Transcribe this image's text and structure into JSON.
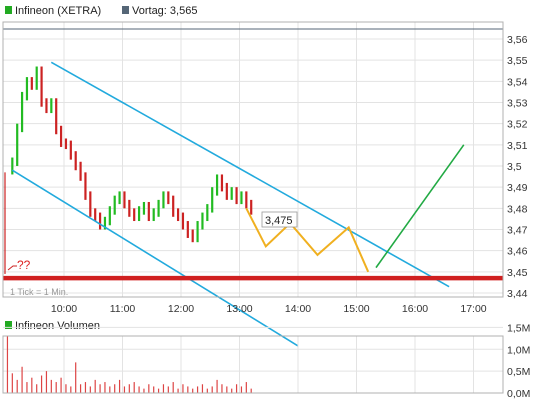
{
  "header": {
    "instrument_label": "Infineon (XETRA)",
    "instrument_color": "#22aa22",
    "prev_close_label": "Vortag: 3,565",
    "prev_close_color": "#556677"
  },
  "volume_header": {
    "label": "Infineon Volumen",
    "color": "#22aa22"
  },
  "annotation": {
    "question_text": "??",
    "tick_text": "1 Tick = 1 Min.",
    "target_label": "3,475"
  },
  "colors": {
    "up": "#22bb22",
    "down": "#cc2222",
    "channel": "#22aadd",
    "projection_yellow": "#f0b020",
    "projection_green": "#22aa44",
    "support": "#d02020",
    "grid": "#e3e3e3",
    "volume": "#dd4444"
  },
  "chart_data": [
    {
      "type": "line",
      "title": "Infineon (XETRA)",
      "x_ticks": [
        "10:00",
        "11:00",
        "12:00",
        "13:00",
        "14:00",
        "15:00",
        "16:00",
        "17:00"
      ],
      "x_range": [
        "09:00",
        "17:30"
      ],
      "y_ticks": [
        "3,56",
        "3,55",
        "3,54",
        "3,53",
        "3,52",
        "3,51",
        "3,5",
        "3,49",
        "3,48",
        "3,47",
        "3,46",
        "3,45",
        "3,44"
      ],
      "y_range": [
        3.44,
        3.56
      ],
      "grid": true,
      "previous_close": 3.565,
      "series": [
        {
          "name": "Infineon (XETRA)",
          "kind": "minute-bars",
          "x": [
            "09:07",
            "09:12",
            "09:17",
            "09:22",
            "09:27",
            "09:32",
            "09:37",
            "09:42",
            "09:47",
            "09:52",
            "09:57",
            "10:02",
            "10:07",
            "10:12",
            "10:17",
            "10:22",
            "10:27",
            "10:32",
            "10:37",
            "10:42",
            "10:47",
            "10:52",
            "10:57",
            "11:02",
            "11:07",
            "11:12",
            "11:17",
            "11:22",
            "11:27",
            "11:32",
            "11:37",
            "11:42",
            "11:47",
            "11:52",
            "11:57",
            "12:02",
            "12:07",
            "12:12",
            "12:17",
            "12:22",
            "12:27",
            "12:32",
            "12:37",
            "12:42",
            "12:47",
            "12:52",
            "12:57",
            "13:02",
            "13:07",
            "13:12"
          ],
          "y": [
            3.502,
            3.518,
            3.533,
            3.54,
            3.538,
            3.545,
            3.53,
            3.527,
            3.53,
            3.517,
            3.511,
            3.51,
            3.505,
            3.5,
            3.495,
            3.486,
            3.478,
            3.476,
            3.472,
            3.474,
            3.479,
            3.484,
            3.486,
            3.482,
            3.478,
            3.476,
            3.479,
            3.481,
            3.476,
            3.478,
            3.482,
            3.486,
            3.484,
            3.478,
            3.476,
            3.472,
            3.468,
            3.466,
            3.472,
            3.476,
            3.48,
            3.488,
            3.494,
            3.49,
            3.486,
            3.488,
            3.484,
            3.486,
            3.482,
            3.479
          ]
        }
      ],
      "channel": {
        "upper": [
          [
            "09:47",
            3.549
          ],
          [
            "16:35",
            3.443
          ]
        ],
        "lower": [
          [
            "09:07",
            3.498
          ],
          [
            "14:00",
            3.415
          ]
        ]
      },
      "support_level": 3.447,
      "projection_yellow": [
        [
          "13:07",
          3.48
        ],
        [
          "13:27",
          3.462
        ],
        [
          "13:52",
          3.473
        ],
        [
          "14:20",
          3.458
        ],
        [
          "14:52",
          3.471
        ],
        [
          "15:12",
          3.45
        ]
      ],
      "projection_green": [
        [
          "15:20",
          3.452
        ],
        [
          "16:50",
          3.51
        ]
      ]
    },
    {
      "type": "bar",
      "title": "Infineon Volumen",
      "y_ticks": [
        "1,5M",
        "1,0M",
        "0,5M",
        "0,0M"
      ],
      "y_range": [
        0,
        1.6
      ],
      "unit": "M",
      "x": [
        "09:02",
        "09:07",
        "09:12",
        "09:17",
        "09:22",
        "09:27",
        "09:32",
        "09:37",
        "09:42",
        "09:47",
        "09:52",
        "09:57",
        "10:02",
        "10:07",
        "10:12",
        "10:17",
        "10:22",
        "10:27",
        "10:32",
        "10:37",
        "10:42",
        "10:47",
        "10:52",
        "10:57",
        "11:02",
        "11:07",
        "11:12",
        "11:17",
        "11:22",
        "11:27",
        "11:32",
        "11:37",
        "11:42",
        "11:47",
        "11:52",
        "11:57",
        "12:02",
        "12:07",
        "12:12",
        "12:17",
        "12:22",
        "12:27",
        "12:32",
        "12:37",
        "12:42",
        "12:47",
        "12:52",
        "12:57",
        "13:02",
        "13:07",
        "13:12"
      ],
      "values": [
        1.3,
        0.45,
        0.3,
        0.6,
        0.25,
        0.35,
        0.2,
        0.4,
        0.5,
        0.3,
        0.25,
        0.35,
        0.2,
        0.15,
        0.7,
        0.2,
        0.25,
        0.15,
        0.3,
        0.2,
        0.25,
        0.15,
        0.2,
        0.3,
        0.15,
        0.2,
        0.25,
        0.15,
        0.1,
        0.2,
        0.15,
        0.1,
        0.2,
        0.15,
        0.25,
        0.1,
        0.2,
        0.15,
        0.1,
        0.15,
        0.2,
        0.1,
        0.15,
        0.3,
        0.2,
        0.15,
        0.1,
        0.2,
        0.15,
        0.25,
        0.1
      ]
    }
  ]
}
